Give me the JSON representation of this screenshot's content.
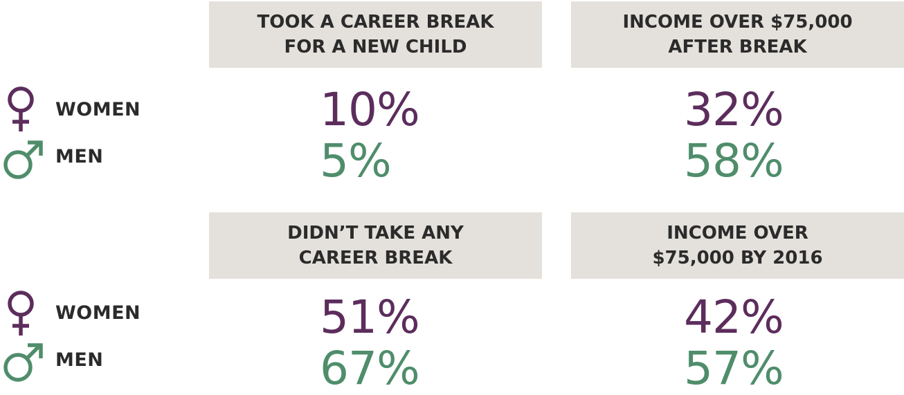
{
  "chart_data": {
    "type": "table",
    "rows": [
      "WOMEN",
      "MEN"
    ],
    "panels": [
      {
        "header": [
          "TOOK A CAREER BREAK",
          "FOR A NEW CHILD"
        ],
        "values": {
          "women": "10%",
          "men": "5%"
        }
      },
      {
        "header": [
          "INCOME OVER $75,000",
          "AFTER BREAK"
        ],
        "values": {
          "women": "32%",
          "men": "58%"
        }
      },
      {
        "header": [
          "DIDN’T TAKE ANY",
          "CAREER BREAK"
        ],
        "values": {
          "women": "51%",
          "men": "67%"
        }
      },
      {
        "header": [
          "INCOME OVER",
          "$75,000 BY 2016"
        ],
        "values": {
          "women": "42%",
          "men": "57%"
        }
      }
    ]
  },
  "legend": {
    "women_label": "WOMEN",
    "men_label": "MEN",
    "women_icon": "female-symbol-icon",
    "men_icon": "male-symbol-icon"
  },
  "colors": {
    "women": "#5c2d5c",
    "men": "#4f8d6b",
    "header_bg": "#e4e1dc",
    "header_text": "#2b2b2b"
  }
}
